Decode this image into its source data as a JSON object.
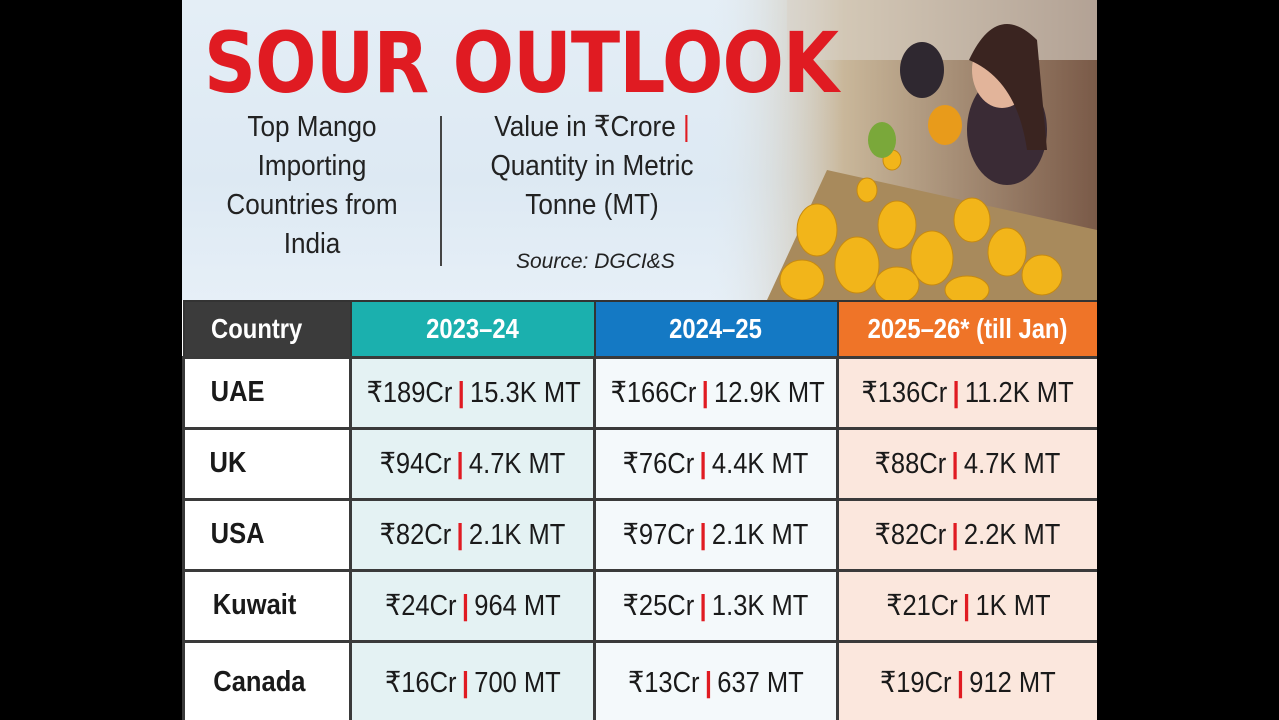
{
  "title": "SOUR OUTLOOK",
  "subtitle_left": "Top Mango Importing Countries from India",
  "subtitle_right_value": "Value in ₹Crore",
  "subtitle_right_quantity": "Quantity in Metric Tonne (MT)",
  "source": "Source: DGCI&S",
  "colors": {
    "title": "#e01b22",
    "country_header": "#3b3b3b",
    "col_2023_24": "#1bb0ae",
    "col_2024_25": "#1479c4",
    "col_2025_26": "#ef7428"
  },
  "chart_data": {
    "type": "table",
    "columns": [
      "Country",
      "2023–24",
      "2024–25",
      "2025–26* (till Jan)"
    ],
    "rows": [
      {
        "country": "UAE",
        "cells": [
          {
            "value": "₹189Cr",
            "quantity": "15.3K MT"
          },
          {
            "value": "₹166Cr",
            "quantity": "12.9K MT"
          },
          {
            "value": "₹136Cr",
            "quantity": "11.2K MT"
          }
        ]
      },
      {
        "country": "UK",
        "cells": [
          {
            "value": "₹94Cr",
            "quantity": "4.7K MT"
          },
          {
            "value": "₹76Cr",
            "quantity": "4.4K MT"
          },
          {
            "value": "₹88Cr",
            "quantity": "4.7K MT"
          }
        ]
      },
      {
        "country": "USA",
        "cells": [
          {
            "value": "₹82Cr",
            "quantity": "2.1K MT"
          },
          {
            "value": "₹97Cr",
            "quantity": "2.1K MT"
          },
          {
            "value": "₹82Cr",
            "quantity": "2.2K MT"
          }
        ]
      },
      {
        "country": "Kuwait",
        "cells": [
          {
            "value": "₹24Cr",
            "quantity": "964 MT"
          },
          {
            "value": "₹25Cr",
            "quantity": "1.3K MT"
          },
          {
            "value": "₹21Cr",
            "quantity": "1K MT"
          }
        ]
      },
      {
        "country": "Canada",
        "cells": [
          {
            "value": "₹16Cr",
            "quantity": "700 MT"
          },
          {
            "value": "₹13Cr",
            "quantity": "637 MT"
          },
          {
            "value": "₹19Cr",
            "quantity": "912 MT"
          }
        ]
      }
    ]
  }
}
